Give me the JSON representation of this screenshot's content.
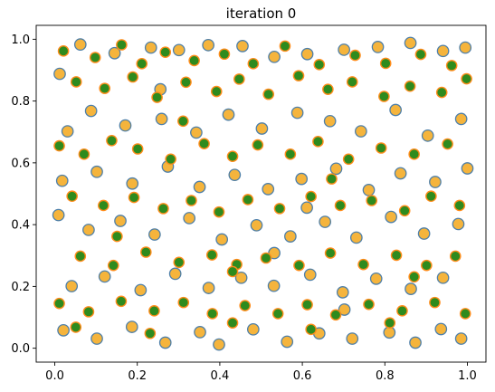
{
  "chart_data": {
    "type": "scatter",
    "title": "iteration 0",
    "xlabel": "",
    "ylabel": "",
    "xlim": [
      -0.045,
      1.045
    ],
    "ylim": [
      -0.045,
      1.045
    ],
    "x_ticks": [
      "0.0",
      "0.2",
      "0.4",
      "0.6",
      "0.8",
      "1.0"
    ],
    "y_ticks": [
      "0.0",
      "0.2",
      "0.4",
      "0.6",
      "0.8",
      "1.0"
    ],
    "grid": false,
    "legend": "none",
    "colors": {
      "marker_fill": "#f5b43c",
      "marker_edge": "#4e7fa8",
      "overlay_fill": "#2e8b1e",
      "overlay_edge": "#ff8c1a",
      "axes": "#000000"
    },
    "series": [
      {
        "marker_style": "orange-fill-blue-edge",
        "points": [
          [
            0.012,
            0.888
          ],
          [
            0.062,
            0.983
          ],
          [
            0.145,
            0.955
          ],
          [
            0.233,
            0.973
          ],
          [
            0.301,
            0.965
          ],
          [
            0.372,
            0.981
          ],
          [
            0.455,
            0.978
          ],
          [
            0.532,
            0.943
          ],
          [
            0.612,
            0.952
          ],
          [
            0.701,
            0.966
          ],
          [
            0.783,
            0.975
          ],
          [
            0.862,
            0.988
          ],
          [
            0.941,
            0.962
          ],
          [
            0.995,
            0.973
          ],
          [
            0.031,
            0.702
          ],
          [
            0.088,
            0.768
          ],
          [
            0.171,
            0.721
          ],
          [
            0.259,
            0.742
          ],
          [
            0.343,
            0.698
          ],
          [
            0.421,
            0.756
          ],
          [
            0.502,
            0.711
          ],
          [
            0.588,
            0.762
          ],
          [
            0.667,
            0.735
          ],
          [
            0.742,
            0.702
          ],
          [
            0.826,
            0.771
          ],
          [
            0.904,
            0.688
          ],
          [
            0.985,
            0.742
          ],
          [
            0.018,
            0.542
          ],
          [
            0.102,
            0.571
          ],
          [
            0.188,
            0.533
          ],
          [
            0.274,
            0.588
          ],
          [
            0.351,
            0.522
          ],
          [
            0.436,
            0.561
          ],
          [
            0.517,
            0.515
          ],
          [
            0.598,
            0.548
          ],
          [
            0.682,
            0.581
          ],
          [
            0.761,
            0.512
          ],
          [
            0.838,
            0.566
          ],
          [
            0.922,
            0.538
          ],
          [
            1.0,
            0.582
          ],
          [
            0.009,
            0.431
          ],
          [
            0.082,
            0.383
          ],
          [
            0.159,
            0.412
          ],
          [
            0.242,
            0.368
          ],
          [
            0.326,
            0.421
          ],
          [
            0.405,
            0.352
          ],
          [
            0.489,
            0.398
          ],
          [
            0.571,
            0.362
          ],
          [
            0.655,
            0.409
          ],
          [
            0.731,
            0.358
          ],
          [
            0.815,
            0.425
          ],
          [
            0.895,
            0.371
          ],
          [
            0.978,
            0.402
          ],
          [
            0.041,
            0.201
          ],
          [
            0.121,
            0.232
          ],
          [
            0.208,
            0.188
          ],
          [
            0.292,
            0.241
          ],
          [
            0.373,
            0.195
          ],
          [
            0.452,
            0.228
          ],
          [
            0.531,
            0.202
          ],
          [
            0.619,
            0.238
          ],
          [
            0.698,
            0.181
          ],
          [
            0.779,
            0.225
          ],
          [
            0.863,
            0.192
          ],
          [
            0.941,
            0.228
          ],
          [
            0.021,
            0.058
          ],
          [
            0.102,
            0.031
          ],
          [
            0.187,
            0.069
          ],
          [
            0.268,
            0.018
          ],
          [
            0.352,
            0.052
          ],
          [
            0.398,
            0.012
          ],
          [
            0.481,
            0.061
          ],
          [
            0.563,
            0.021
          ],
          [
            0.641,
            0.048
          ],
          [
            0.721,
            0.031
          ],
          [
            0.811,
            0.051
          ],
          [
            0.874,
            0.018
          ],
          [
            0.936,
            0.062
          ],
          [
            0.985,
            0.031
          ],
          [
            0.532,
            0.308
          ],
          [
            0.702,
            0.125
          ],
          [
            0.256,
            0.838
          ],
          [
            0.611,
            0.455
          ]
        ]
      },
      {
        "marker_style": "green-fill-orange-edge",
        "points": [
          [
            0.021,
            0.962
          ],
          [
            0.098,
            0.941
          ],
          [
            0.162,
            0.982
          ],
          [
            0.211,
            0.921
          ],
          [
            0.268,
            0.958
          ],
          [
            0.338,
            0.931
          ],
          [
            0.411,
            0.952
          ],
          [
            0.481,
            0.921
          ],
          [
            0.558,
            0.978
          ],
          [
            0.641,
            0.918
          ],
          [
            0.728,
            0.948
          ],
          [
            0.802,
            0.922
          ],
          [
            0.887,
            0.951
          ],
          [
            0.962,
            0.915
          ],
          [
            0.052,
            0.862
          ],
          [
            0.121,
            0.841
          ],
          [
            0.189,
            0.878
          ],
          [
            0.248,
            0.812
          ],
          [
            0.318,
            0.861
          ],
          [
            0.392,
            0.831
          ],
          [
            0.447,
            0.871
          ],
          [
            0.518,
            0.822
          ],
          [
            0.591,
            0.882
          ],
          [
            0.662,
            0.838
          ],
          [
            0.721,
            0.862
          ],
          [
            0.798,
            0.815
          ],
          [
            0.861,
            0.848
          ],
          [
            0.938,
            0.828
          ],
          [
            0.998,
            0.872
          ],
          [
            0.011,
            0.655
          ],
          [
            0.071,
            0.628
          ],
          [
            0.138,
            0.672
          ],
          [
            0.201,
            0.645
          ],
          [
            0.281,
            0.612
          ],
          [
            0.362,
            0.662
          ],
          [
            0.431,
            0.621
          ],
          [
            0.492,
            0.658
          ],
          [
            0.571,
            0.628
          ],
          [
            0.638,
            0.669
          ],
          [
            0.712,
            0.612
          ],
          [
            0.791,
            0.648
          ],
          [
            0.871,
            0.628
          ],
          [
            0.952,
            0.661
          ],
          [
            0.042,
            0.492
          ],
          [
            0.118,
            0.462
          ],
          [
            0.192,
            0.488
          ],
          [
            0.263,
            0.452
          ],
          [
            0.331,
            0.478
          ],
          [
            0.398,
            0.441
          ],
          [
            0.468,
            0.481
          ],
          [
            0.545,
            0.452
          ],
          [
            0.621,
            0.491
          ],
          [
            0.692,
            0.462
          ],
          [
            0.768,
            0.478
          ],
          [
            0.848,
            0.445
          ],
          [
            0.912,
            0.492
          ],
          [
            0.981,
            0.462
          ],
          [
            0.062,
            0.298
          ],
          [
            0.142,
            0.268
          ],
          [
            0.221,
            0.311
          ],
          [
            0.301,
            0.278
          ],
          [
            0.381,
            0.302
          ],
          [
            0.441,
            0.271
          ],
          [
            0.512,
            0.292
          ],
          [
            0.592,
            0.268
          ],
          [
            0.668,
            0.308
          ],
          [
            0.748,
            0.271
          ],
          [
            0.828,
            0.301
          ],
          [
            0.901,
            0.268
          ],
          [
            0.971,
            0.298
          ],
          [
            0.011,
            0.145
          ],
          [
            0.082,
            0.118
          ],
          [
            0.161,
            0.152
          ],
          [
            0.241,
            0.121
          ],
          [
            0.312,
            0.148
          ],
          [
            0.382,
            0.112
          ],
          [
            0.461,
            0.138
          ],
          [
            0.541,
            0.112
          ],
          [
            0.612,
            0.141
          ],
          [
            0.681,
            0.108
          ],
          [
            0.761,
            0.142
          ],
          [
            0.842,
            0.121
          ],
          [
            0.921,
            0.148
          ],
          [
            0.995,
            0.112
          ],
          [
            0.051,
            0.068
          ],
          [
            0.231,
            0.048
          ],
          [
            0.431,
            0.082
          ],
          [
            0.621,
            0.061
          ],
          [
            0.812,
            0.082
          ],
          [
            0.311,
            0.735
          ],
          [
            0.671,
            0.548
          ],
          [
            0.151,
            0.362
          ],
          [
            0.871,
            0.231
          ],
          [
            0.431,
            0.248
          ]
        ]
      }
    ]
  }
}
